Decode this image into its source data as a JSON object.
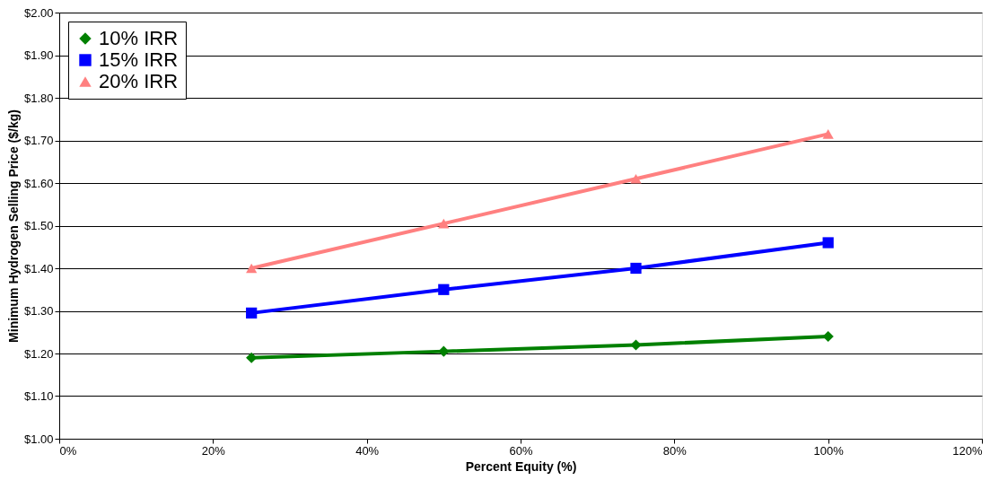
{
  "chart_data": {
    "type": "line",
    "xlabel": "Percent Equity (%)",
    "ylabel": "Minimum Hydrogen Selling Price ($/kg)",
    "x": [
      25,
      50,
      75,
      100
    ],
    "series": [
      {
        "name": "10% IRR",
        "color": "#008000",
        "marker": "diamond",
        "values": [
          1.19,
          1.205,
          1.22,
          1.24
        ]
      },
      {
        "name": "15% IRR",
        "color": "#0000ff",
        "marker": "square",
        "values": [
          1.295,
          1.35,
          1.4,
          1.46
        ]
      },
      {
        "name": "20% IRR",
        "color": "#ff8080",
        "marker": "triangle",
        "values": [
          1.4,
          1.505,
          1.61,
          1.715
        ]
      }
    ],
    "xlim": [
      0,
      120
    ],
    "xticks": [
      {
        "value": 0,
        "label": "0%"
      },
      {
        "value": 20,
        "label": "20%"
      },
      {
        "value": 40,
        "label": "40%"
      },
      {
        "value": 60,
        "label": "60%"
      },
      {
        "value": 80,
        "label": "80%"
      },
      {
        "value": 100,
        "label": "100%"
      },
      {
        "value": 120,
        "label": "120%"
      }
    ],
    "ylim": [
      1.0,
      2.0
    ],
    "yticks": [
      {
        "value": 1.0,
        "label": "$1.00"
      },
      {
        "value": 1.1,
        "label": "$1.10"
      },
      {
        "value": 1.2,
        "label": "$1.20"
      },
      {
        "value": 1.3,
        "label": "$1.30"
      },
      {
        "value": 1.4,
        "label": "$1.40"
      },
      {
        "value": 1.5,
        "label": "$1.50"
      },
      {
        "value": 1.6,
        "label": "$1.60"
      },
      {
        "value": 1.7,
        "label": "$1.70"
      },
      {
        "value": 1.8,
        "label": "$1.80"
      },
      {
        "value": 1.9,
        "label": "$1.90"
      },
      {
        "value": 2.0,
        "label": "$2.00"
      }
    ],
    "grid": "y",
    "legend": "top left",
    "line_style": "solid"
  }
}
